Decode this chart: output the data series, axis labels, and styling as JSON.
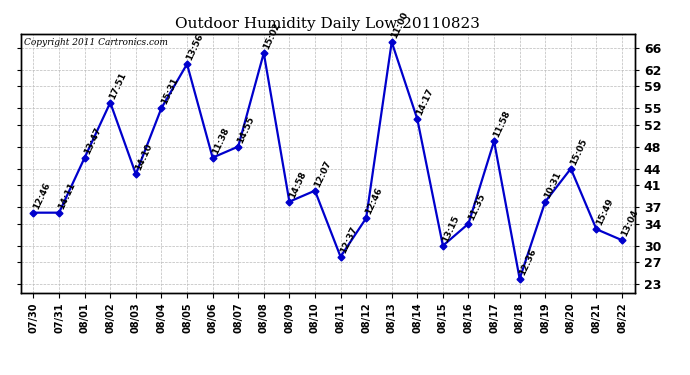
{
  "title": "Outdoor Humidity Daily Low 20110823",
  "copyright": "Copyright 2011 Cartronics.com",
  "line_color": "#0000cc",
  "bg_color": "#ffffff",
  "grid_color": "#bbbbbb",
  "dates": [
    "07/30",
    "07/31",
    "08/01",
    "08/02",
    "08/03",
    "08/04",
    "08/05",
    "08/06",
    "08/07",
    "08/08",
    "08/09",
    "08/10",
    "08/11",
    "08/12",
    "08/13",
    "08/14",
    "08/15",
    "08/16",
    "08/17",
    "08/18",
    "08/19",
    "08/20",
    "08/21",
    "08/22"
  ],
  "values": [
    36,
    36,
    46,
    56,
    43,
    55,
    63,
    46,
    48,
    65,
    38,
    40,
    28,
    35,
    67,
    53,
    30,
    34,
    49,
    24,
    38,
    44,
    33,
    31
  ],
  "time_labels": [
    "12:46",
    "14:11",
    "13:47",
    "17:51",
    "14:10",
    "15:31",
    "13:56",
    "11:38",
    "14:55",
    "15:02",
    "14:58",
    "12:07",
    "12:37",
    "12:46",
    "11:00",
    "14:17",
    "13:15",
    "11:35",
    "11:58",
    "12:36",
    "10:31",
    "15:05",
    "15:49",
    "13:04"
  ],
  "yticks": [
    23,
    27,
    30,
    34,
    37,
    41,
    44,
    48,
    52,
    55,
    59,
    62,
    66
  ],
  "ylim": [
    21.5,
    68.5
  ],
  "xlim": [
    -0.5,
    23.5
  ],
  "label_fontsize": 6.5,
  "title_fontsize": 11,
  "xtick_fontsize": 7,
  "ytick_fontsize": 9,
  "marker_size": 3.5,
  "linewidth": 1.6
}
